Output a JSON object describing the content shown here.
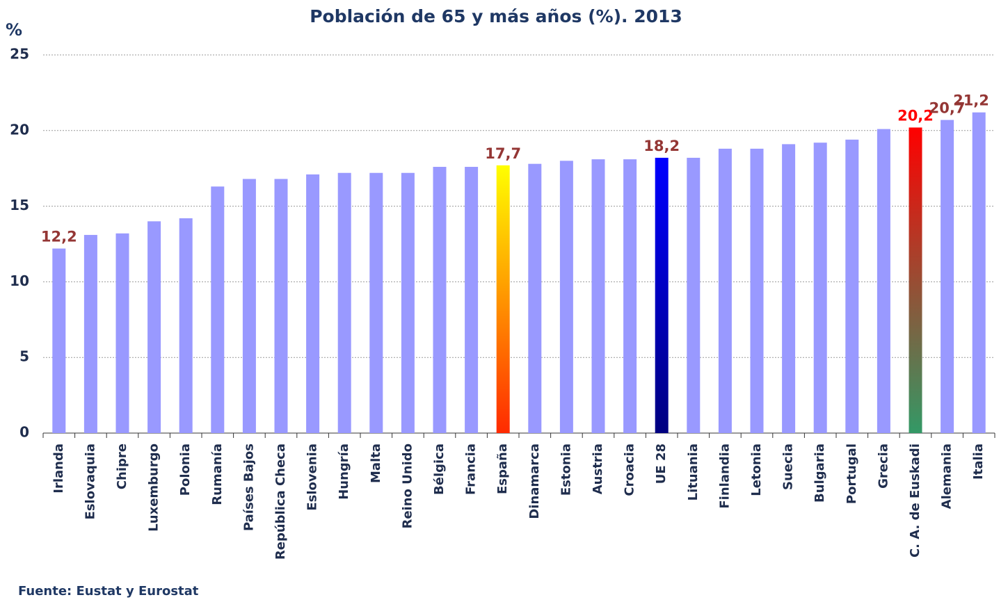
{
  "chart_data": {
    "type": "bar",
    "title": "Población de 65 y más años (%). 2013",
    "y_label": "%",
    "source": "Fuente: Eustat y Eurostat",
    "categories": [
      "Irlanda",
      "Eslovaquia",
      "Chipre",
      "Luxemburgo",
      "Polonia",
      "Rumanía",
      "Países Bajos",
      "República Checa",
      "Eslovenia",
      "Hungría",
      "Malta",
      "Reino Unido",
      "Bélgica",
      "Francia",
      "España",
      "Dinamarca",
      "Estonia",
      "Austria",
      "Croacia",
      "UE 28",
      "Lituania",
      "Finlandia",
      "Letonia",
      "Suecia",
      "Bulgaria",
      "Portugal",
      "Grecia",
      "C. A. de Euskadi",
      "Alemania",
      "Italia"
    ],
    "values": [
      12.2,
      13.1,
      13.2,
      14.0,
      14.2,
      16.3,
      16.8,
      16.8,
      17.1,
      17.2,
      17.2,
      17.2,
      17.6,
      17.6,
      17.7,
      17.8,
      18.0,
      18.1,
      18.1,
      18.2,
      18.2,
      18.8,
      18.8,
      19.1,
      19.2,
      19.4,
      20.1,
      20.2,
      20.7,
      21.2
    ],
    "value_labels": [
      "12,2",
      null,
      null,
      null,
      null,
      null,
      null,
      null,
      null,
      null,
      null,
      null,
      null,
      null,
      "17,7",
      null,
      null,
      null,
      null,
      "18,2",
      null,
      null,
      null,
      null,
      null,
      null,
      null,
      "20,2",
      "20,7",
      "21,2"
    ],
    "color": "#9999ff",
    "highlight_colors": {
      "14": [
        "#ffff00",
        "#ff2a00"
      ],
      "19": [
        "#0000ff",
        "#000080"
      ],
      "27": [
        "#ff0000",
        "#339966"
      ]
    },
    "value_label_color": "#943634",
    "highlight_label_colors": {
      "27": "#ff0000"
    },
    "ylim": [
      0,
      25
    ],
    "yticks": [
      0,
      5,
      10,
      15,
      20,
      25
    ],
    "grid": true
  }
}
